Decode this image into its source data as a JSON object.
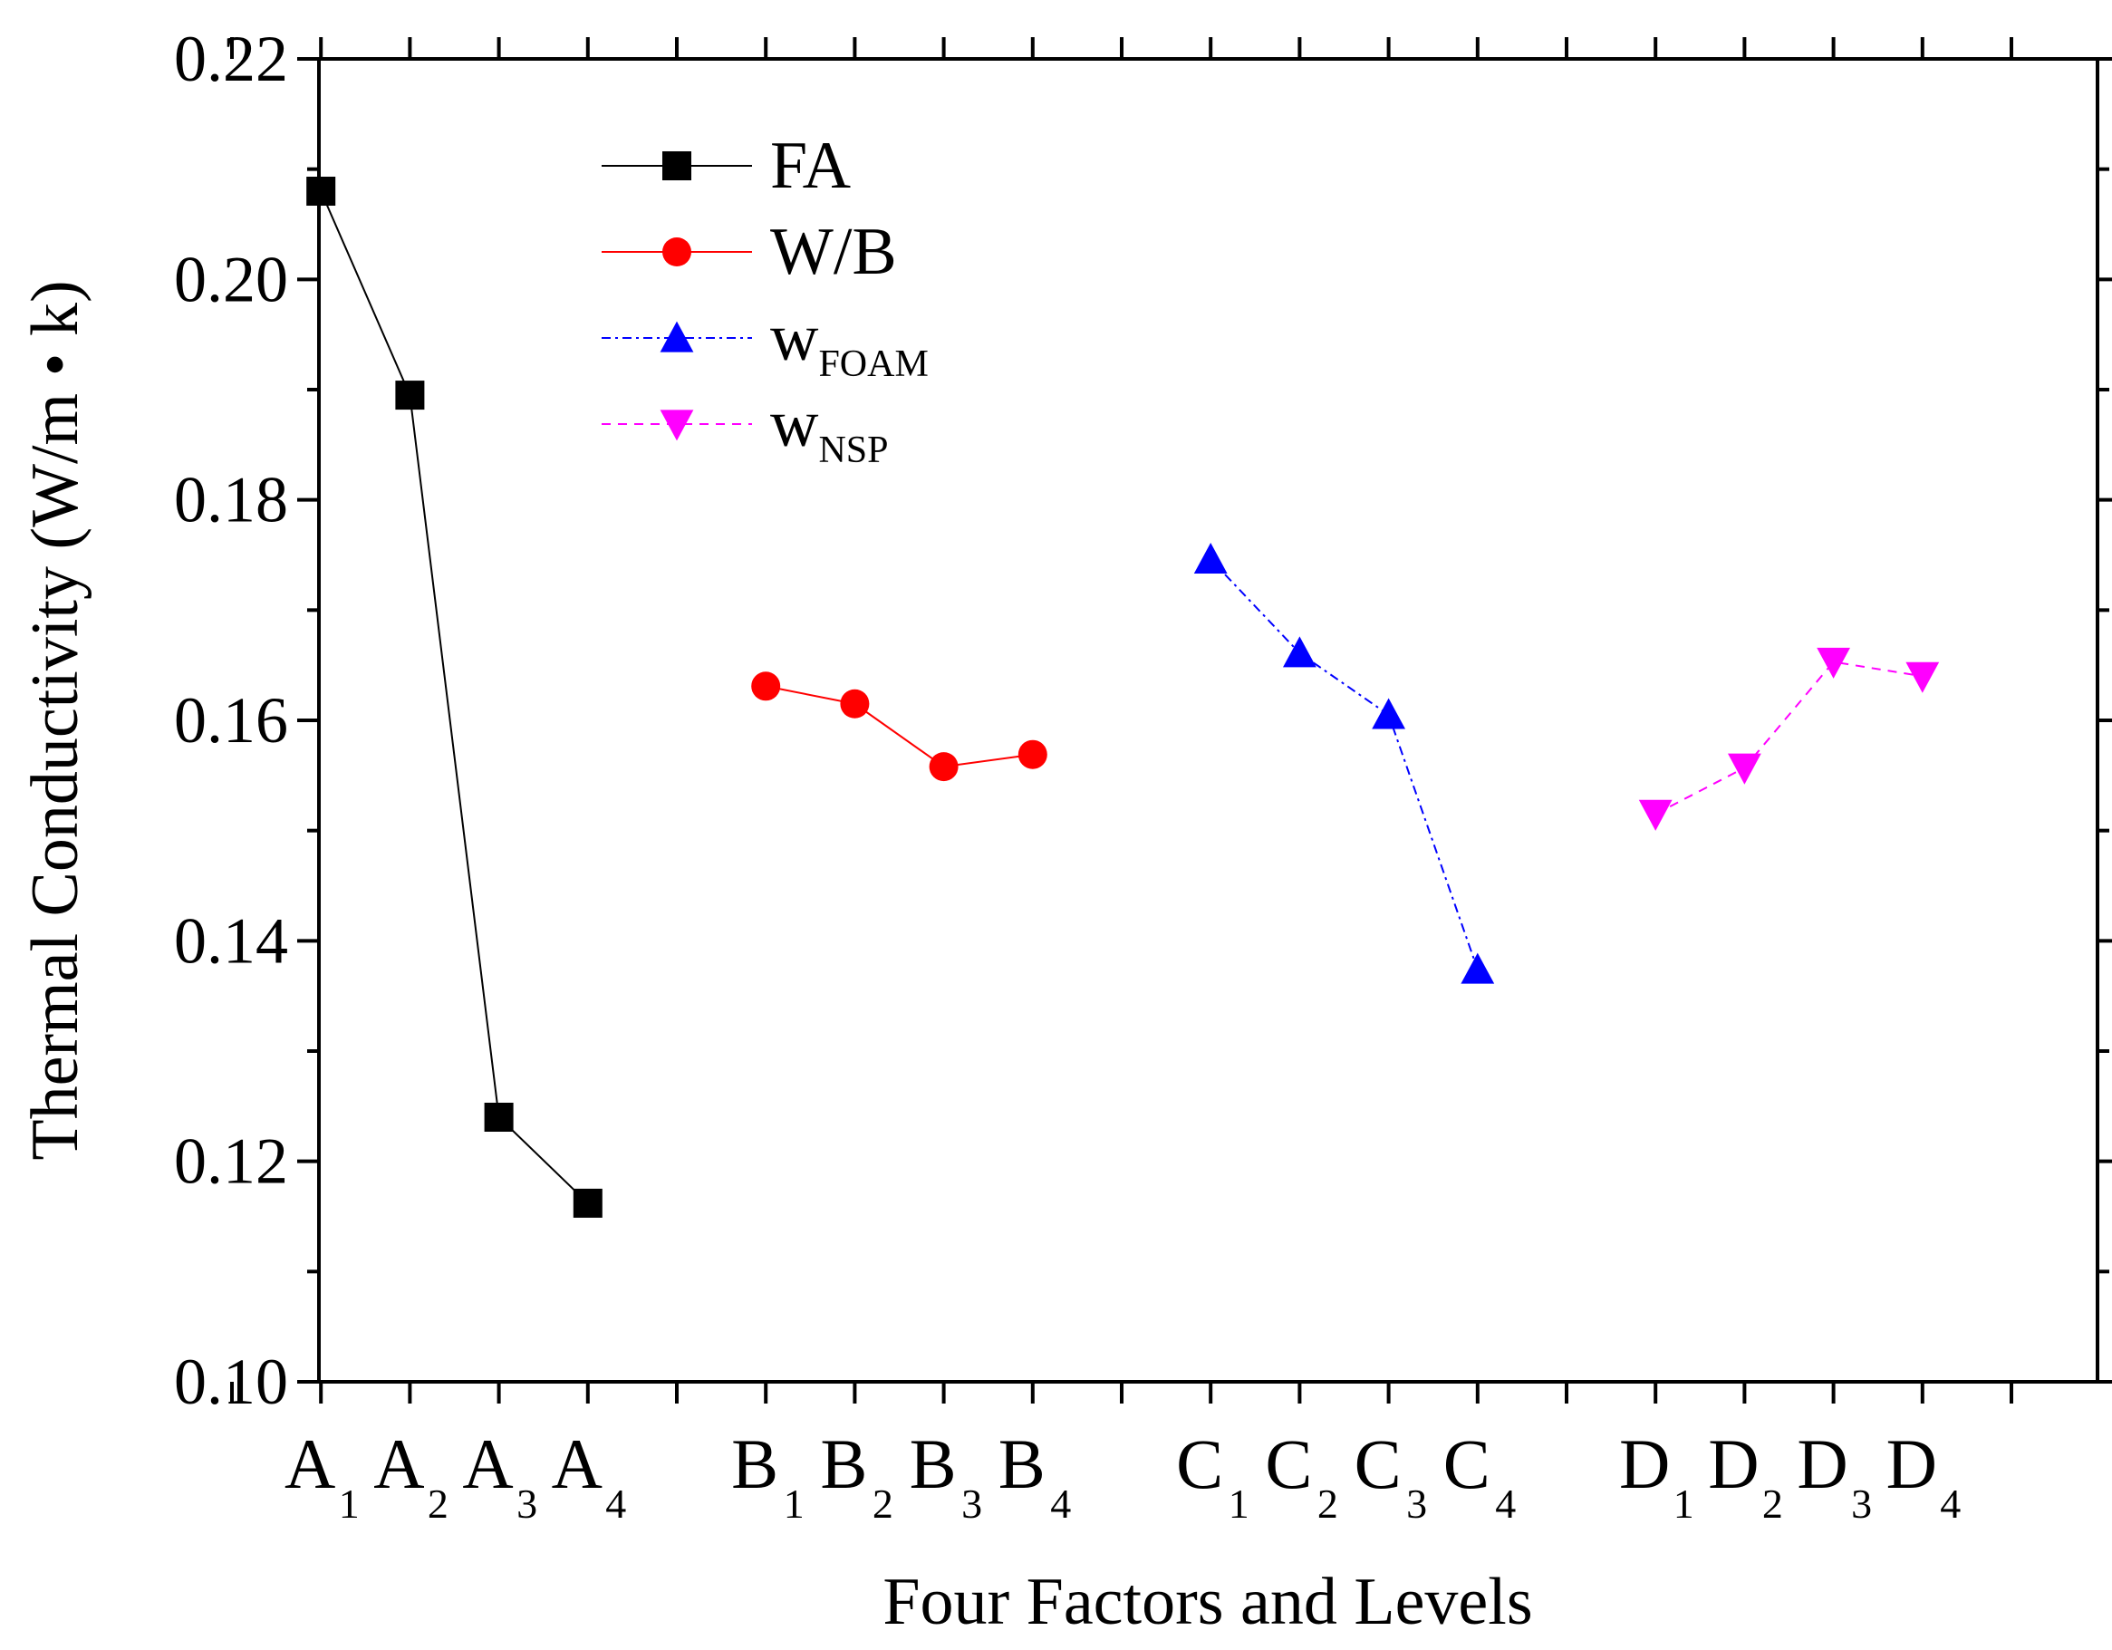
{
  "chart_data": {
    "type": "line",
    "title": "",
    "xlabel": "Four Factors and Levels",
    "ylabel": "Thermal Conductivity (W/m • k)",
    "ylim": [
      0.1,
      0.22
    ],
    "xlim": [
      0,
      20
    ],
    "y_ticks": [
      "0.10",
      "0.12",
      "0.14",
      "0.16",
      "0.18",
      "0.20",
      "0.22"
    ],
    "legend_position": "top-left",
    "series": [
      {
        "name": "FA",
        "name_main": "FA",
        "name_sub": "",
        "color": "#000000",
        "marker": "square",
        "line_style": "solid",
        "categories": [
          {
            "letter": "A",
            "sub": "1"
          },
          {
            "letter": "A",
            "sub": "2"
          },
          {
            "letter": "A",
            "sub": "3"
          },
          {
            "letter": "A",
            "sub": "4"
          }
        ],
        "x": [
          1,
          2,
          3,
          4
        ],
        "values": [
          0.208,
          0.1895,
          0.124,
          0.1162
        ]
      },
      {
        "name": "W/B",
        "name_main": "W/B",
        "name_sub": "",
        "color": "#ff0000",
        "marker": "circle",
        "line_style": "solid",
        "categories": [
          {
            "letter": "B",
            "sub": "1"
          },
          {
            "letter": "B",
            "sub": "2"
          },
          {
            "letter": "B",
            "sub": "3"
          },
          {
            "letter": "B",
            "sub": "4"
          }
        ],
        "x": [
          6,
          7,
          8,
          9
        ],
        "values": [
          0.1631,
          0.1615,
          0.1558,
          0.1569
        ]
      },
      {
        "name": "wFOAM",
        "name_main": "w",
        "name_sub": "FOAM",
        "color": "#0000ff",
        "marker": "triangle-up",
        "line_style": "dashdot",
        "categories": [
          {
            "letter": "C",
            "sub": "1"
          },
          {
            "letter": "C",
            "sub": "2"
          },
          {
            "letter": "C",
            "sub": "3"
          },
          {
            "letter": "C",
            "sub": "4"
          }
        ],
        "x": [
          11,
          12,
          13,
          14
        ],
        "values": [
          0.1746,
          0.1661,
          0.1605,
          0.1374
        ]
      },
      {
        "name": "wNSP",
        "name_main": "w",
        "name_sub": "NSP",
        "color": "#ff00ff",
        "marker": "triangle-down",
        "line_style": "dashed",
        "categories": [
          {
            "letter": "D",
            "sub": "1"
          },
          {
            "letter": "D",
            "sub": "2"
          },
          {
            "letter": "D",
            "sub": "3"
          },
          {
            "letter": "D",
            "sub": "4"
          }
        ],
        "x": [
          16,
          17,
          18,
          19
        ],
        "values": [
          0.1515,
          0.1557,
          0.1653,
          0.164
        ]
      }
    ]
  }
}
